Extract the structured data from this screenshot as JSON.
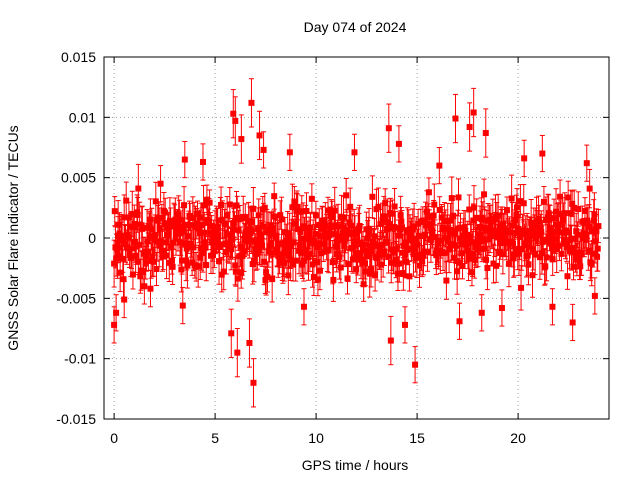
{
  "chart_data": {
    "type": "scatter",
    "title": "Day 074 of 2024",
    "xlabel": "GPS time / hours",
    "ylabel": "GNSS Solar Flare indicator / TECUs",
    "xlim": [
      -0.5,
      24.5
    ],
    "ylim": [
      -0.015,
      0.015
    ],
    "x_ticks": [
      0,
      5,
      10,
      15,
      20
    ],
    "x_tick_labels": [
      "0",
      "5",
      "10",
      "15",
      "20"
    ],
    "y_ticks": [
      -0.015,
      -0.01,
      -0.005,
      0,
      0.005,
      0.01,
      0.015
    ],
    "y_tick_labels": [
      "-0.015",
      "-0.01",
      "-0.005",
      "0",
      "0.005",
      "0.01",
      "0.015"
    ],
    "grid": true,
    "series": [
      {
        "color": "#ff0000",
        "marker": "square",
        "error_bars": true,
        "points": [
          {
            "x": 0.0,
            "y": -0.0072,
            "err": 0.0015
          },
          {
            "x": 0.1,
            "y": -0.0062,
            "err": 0.0015
          },
          {
            "x": 0.2,
            "y": 0.0011,
            "err": 0.002
          },
          {
            "x": 0.5,
            "y": -0.0051,
            "err": 0.0015
          },
          {
            "x": 1.2,
            "y": 0.0041,
            "err": 0.002
          },
          {
            "x": 1.8,
            "y": -0.0042,
            "err": 0.0015
          },
          {
            "x": 2.3,
            "y": 0.0045,
            "err": 0.0015
          },
          {
            "x": 3.4,
            "y": -0.0056,
            "err": 0.0015
          },
          {
            "x": 3.5,
            "y": 0.0065,
            "err": 0.0015
          },
          {
            "x": 4.4,
            "y": 0.0063,
            "err": 0.0015
          },
          {
            "x": 5.8,
            "y": -0.0079,
            "err": 0.002
          },
          {
            "x": 5.9,
            "y": 0.0103,
            "err": 0.002
          },
          {
            "x": 6.0,
            "y": 0.0097,
            "err": 0.002
          },
          {
            "x": 6.1,
            "y": -0.0095,
            "err": 0.002
          },
          {
            "x": 6.3,
            "y": 0.0082,
            "err": 0.002
          },
          {
            "x": 6.8,
            "y": 0.0112,
            "err": 0.002
          },
          {
            "x": 6.9,
            "y": -0.012,
            "err": 0.002
          },
          {
            "x": 6.7,
            "y": -0.0087,
            "err": 0.002
          },
          {
            "x": 7.2,
            "y": 0.0085,
            "err": 0.002
          },
          {
            "x": 7.4,
            "y": 0.0073,
            "err": 0.0015
          },
          {
            "x": 8.7,
            "y": 0.0071,
            "err": 0.0015
          },
          {
            "x": 9.4,
            "y": -0.0057,
            "err": 0.0015
          },
          {
            "x": 11.9,
            "y": 0.0071,
            "err": 0.0015
          },
          {
            "x": 13.6,
            "y": 0.0091,
            "err": 0.002
          },
          {
            "x": 13.7,
            "y": -0.0085,
            "err": 0.002
          },
          {
            "x": 14.1,
            "y": 0.0078,
            "err": 0.0015
          },
          {
            "x": 14.4,
            "y": -0.0072,
            "err": 0.0015
          },
          {
            "x": 14.9,
            "y": -0.0105,
            "err": 0.0015
          },
          {
            "x": 16.1,
            "y": 0.006,
            "err": 0.0015
          },
          {
            "x": 16.9,
            "y": 0.0099,
            "err": 0.002
          },
          {
            "x": 17.1,
            "y": -0.0069,
            "err": 0.0015
          },
          {
            "x": 17.6,
            "y": 0.0092,
            "err": 0.002
          },
          {
            "x": 17.8,
            "y": 0.0104,
            "err": 0.002
          },
          {
            "x": 18.2,
            "y": -0.0062,
            "err": 0.0015
          },
          {
            "x": 18.4,
            "y": 0.0087,
            "err": 0.002
          },
          {
            "x": 19.2,
            "y": -0.0058,
            "err": 0.0015
          },
          {
            "x": 20.3,
            "y": 0.0066,
            "err": 0.0015
          },
          {
            "x": 21.2,
            "y": 0.007,
            "err": 0.0015
          },
          {
            "x": 21.7,
            "y": -0.0057,
            "err": 0.0015
          },
          {
            "x": 22.7,
            "y": -0.007,
            "err": 0.0015
          },
          {
            "x": 23.4,
            "y": 0.0062,
            "err": 0.0015
          },
          {
            "x": 23.8,
            "y": -0.0048,
            "err": 0.0015
          }
        ],
        "dense_band": {
          "x_start": 0,
          "x_end": 24,
          "step": 0.0333,
          "y_center": 0,
          "y_spread": 0.0045,
          "err": 0.0015
        }
      }
    ]
  }
}
